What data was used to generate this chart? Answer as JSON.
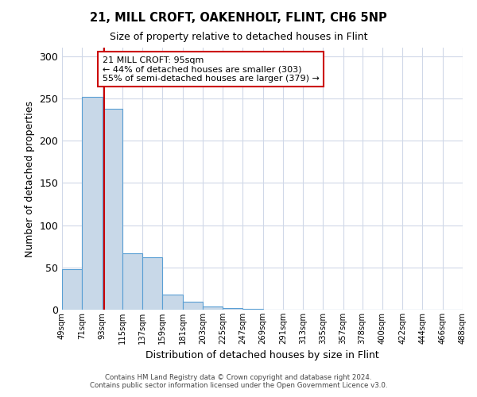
{
  "title": "21, MILL CROFT, OAKENHOLT, FLINT, CH6 5NP",
  "subtitle": "Size of property relative to detached houses in Flint",
  "xlabel": "Distribution of detached houses by size in Flint",
  "ylabel": "Number of detached properties",
  "bin_labels": [
    "49sqm",
    "71sqm",
    "93sqm",
    "115sqm",
    "137sqm",
    "159sqm",
    "181sqm",
    "203sqm",
    "225sqm",
    "247sqm",
    "269sqm",
    "291sqm",
    "313sqm",
    "335sqm",
    "357sqm",
    "378sqm",
    "400sqm",
    "422sqm",
    "444sqm",
    "466sqm",
    "488sqm"
  ],
  "bar_values": [
    48,
    252,
    238,
    67,
    62,
    18,
    9,
    4,
    2,
    1,
    0,
    0,
    0,
    0,
    0,
    0,
    0,
    0,
    0,
    0
  ],
  "bin_edges": [
    49,
    71,
    93,
    115,
    137,
    159,
    181,
    203,
    225,
    247,
    269,
    291,
    313,
    335,
    357,
    378,
    400,
    422,
    444,
    466,
    488
  ],
  "property_size": 95,
  "bar_color": "#c8d8e8",
  "bar_edge_color": "#5a9fd4",
  "red_line_color": "#cc0000",
  "annotation_text": "21 MILL CROFT: 95sqm\n← 44% of detached houses are smaller (303)\n55% of semi-detached houses are larger (379) →",
  "annotation_box_color": "#ffffff",
  "annotation_box_edge": "#cc0000",
  "ylim": [
    0,
    310
  ],
  "yticks": [
    0,
    50,
    100,
    150,
    200,
    250,
    300
  ],
  "footer1": "Contains HM Land Registry data © Crown copyright and database right 2024.",
  "footer2": "Contains public sector information licensed under the Open Government Licence v3.0.",
  "bg_color": "#ffffff",
  "grid_color": "#d0d8e8"
}
